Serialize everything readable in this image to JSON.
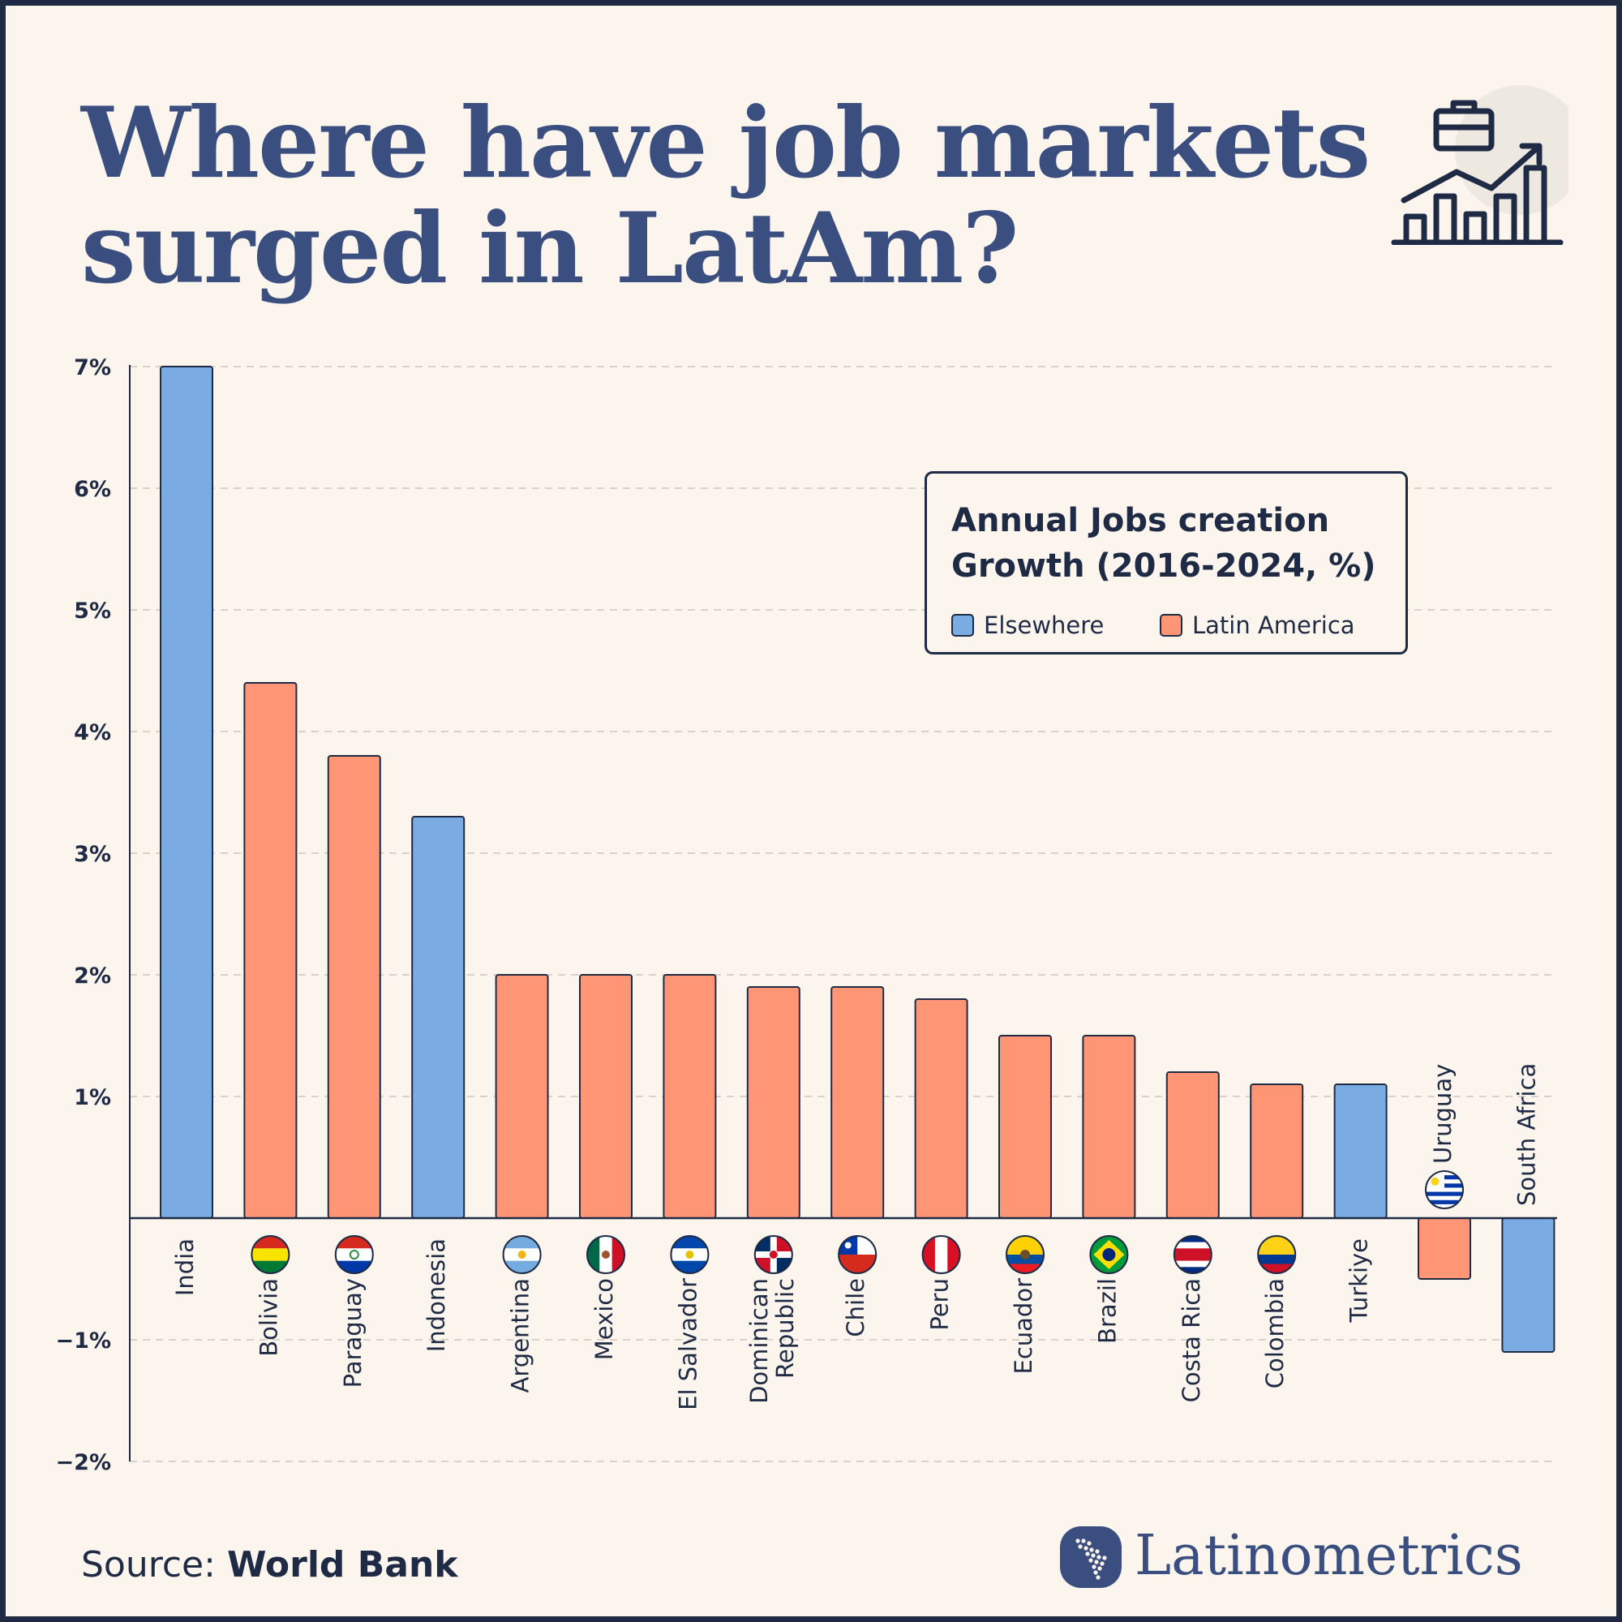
{
  "title": {
    "line1": "Where have job markets",
    "line2": "surged in LatAm?"
  },
  "legend": {
    "title": "Annual Jobs creation Growth (2016-2024, %)",
    "items": [
      {
        "key": "elsewhere",
        "label": "Elsewhere",
        "color": "#7aabe2"
      },
      {
        "key": "latam",
        "label": "Latin America",
        "color": "#fe9676"
      }
    ]
  },
  "source": {
    "prefix": "Source: ",
    "name": "World Bank"
  },
  "brand": {
    "name": "Latinometrics"
  },
  "colors": {
    "background": "#fcf5ee",
    "frame": "#1f2b45",
    "title": "#3a4f7f",
    "elsewhere": "#7aabe2",
    "latam": "#fe9676",
    "outline": "#1f2b45"
  },
  "chart_data": {
    "type": "bar",
    "ylim": [
      -2,
      7
    ],
    "yticks": [
      {
        "value": 7,
        "label": "7%"
      },
      {
        "value": 6,
        "label": "6%"
      },
      {
        "value": 5,
        "label": "5%"
      },
      {
        "value": 4,
        "label": "4%"
      },
      {
        "value": 3,
        "label": "3%"
      },
      {
        "value": 2,
        "label": "2%"
      },
      {
        "value": 1,
        "label": "1%"
      },
      {
        "value": -1,
        "label": "−1%"
      },
      {
        "value": -2,
        "label": "−2%"
      }
    ],
    "grid": true,
    "legend_position": "top-right",
    "categories": [
      "India",
      "Bolivia",
      "Paraguay",
      "Indonesia",
      "Argentina",
      "Mexico",
      "El Salvador",
      "Dominican Republic",
      "Chile",
      "Peru",
      "Ecuador",
      "Brazil",
      "Costa Rica",
      "Colombia",
      "Turkiye",
      "Uruguay",
      "South Africa"
    ],
    "values": [
      7.0,
      4.4,
      3.8,
      3.3,
      2.0,
      2.0,
      2.0,
      1.9,
      1.9,
      1.8,
      1.5,
      1.5,
      1.2,
      1.1,
      1.1,
      -0.5,
      -1.1
    ],
    "groups": [
      "elsewhere",
      "latam",
      "latam",
      "elsewhere",
      "latam",
      "latam",
      "latam",
      "latam",
      "latam",
      "latam",
      "latam",
      "latam",
      "latam",
      "latam",
      "elsewhere",
      "latam",
      "elsewhere"
    ],
    "flags": [
      "",
      "bolivia",
      "paraguay",
      "",
      "argentina",
      "mexico",
      "el-salvador",
      "dominican-republic",
      "chile",
      "peru",
      "ecuador",
      "brazil",
      "costa-rica",
      "colombia",
      "",
      "uruguay",
      ""
    ]
  }
}
